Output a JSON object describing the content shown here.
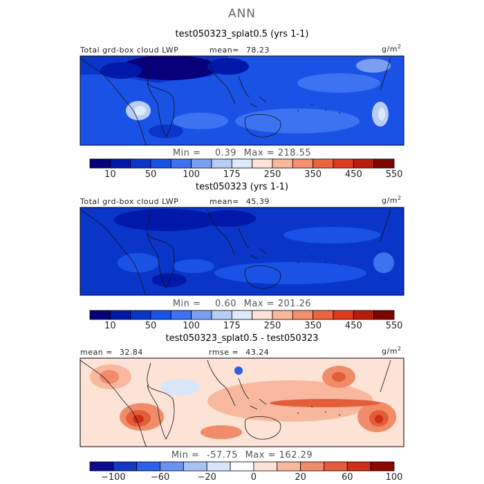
{
  "figure_title": "ANN",
  "colors": {
    "abs_scale": [
      "#08007a",
      "#0019a8",
      "#0a35c9",
      "#1a52e6",
      "#3d72f0",
      "#7a9ff2",
      "#b7cdf6",
      "#ddeafa",
      "#fde2d6",
      "#f9b79a",
      "#f58f6c",
      "#ee6340",
      "#de3a1f",
      "#b81c0c",
      "#7d0600"
    ],
    "diff_scale": [
      "#0d0a8c",
      "#1336c4",
      "#2d60e8",
      "#6a93f0",
      "#a9c2f5",
      "#d9e6fa",
      "#ffffff",
      "#fde2d6",
      "#f8b89e",
      "#f08c6a",
      "#e35d3a",
      "#cc3016",
      "#8c0800"
    ]
  },
  "chart_data": [
    {
      "type": "heatmap",
      "panel_title": "test050323_splat0.5 (yrs 1-1)",
      "variable_label": "Total grd-box cloud LWP",
      "mean_label": "mean=",
      "mean_value": "78.23",
      "units": "g/m",
      "units_exp": "2",
      "min_label": "Min =",
      "min_value": "0.39",
      "max_label": "Max =",
      "max_value": "218.55",
      "colorbar_ticks": [
        "10",
        "50",
        "100",
        "175",
        "250",
        "350",
        "450",
        "550"
      ]
    },
    {
      "type": "heatmap",
      "panel_title": "test050323 (yrs 1-1)",
      "variable_label": "Total grd-box cloud LWP",
      "mean_label": "mean=",
      "mean_value": "45.39",
      "units": "g/m",
      "units_exp": "2",
      "min_label": "Min =",
      "min_value": "0.60",
      "max_label": "Max =",
      "max_value": "201.26",
      "colorbar_ticks": [
        "10",
        "50",
        "100",
        "175",
        "250",
        "350",
        "450",
        "550"
      ]
    },
    {
      "type": "heatmap",
      "panel_title": "test050323_splat0.5 - test050323",
      "mean_label": "mean =",
      "mean_value": "32.84",
      "rmse_label": "rmse =",
      "rmse_value": "43.24",
      "units": "g/m",
      "units_exp": "2",
      "min_label": "Min =",
      "min_value": "-57.75",
      "max_label": "Max =",
      "max_value": "162.29",
      "colorbar_ticks": [
        "−100",
        "−60",
        "−20",
        "0",
        "20",
        "60",
        "100"
      ]
    }
  ]
}
